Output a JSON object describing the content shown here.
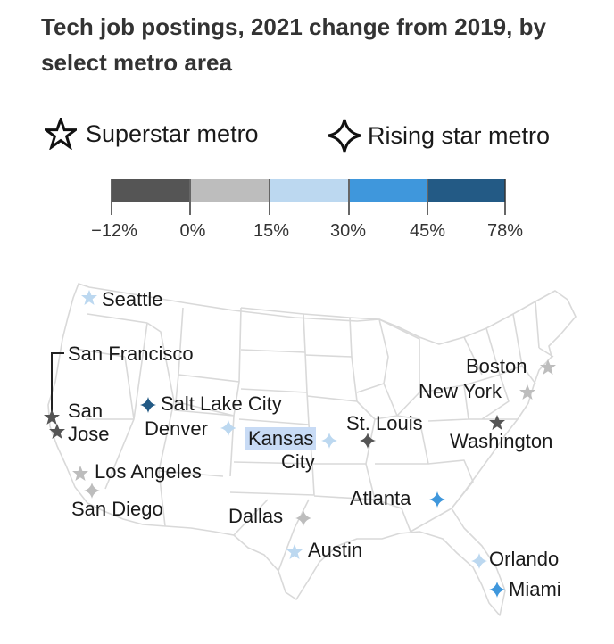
{
  "title": "Tech job postings, 2021 change from 2019, by select metro area",
  "legend": {
    "superstar": {
      "label": "Superstar metro",
      "icon": "outline-five-point-star"
    },
    "rising": {
      "label": "Rising star metro",
      "icon": "outline-four-point-star"
    }
  },
  "color_scale": {
    "ticks": [
      "−12%",
      "0%",
      "15%",
      "30%",
      "45%",
      "78%"
    ],
    "bins": [
      {
        "from": -12,
        "to": 0,
        "color": "#555555"
      },
      {
        "from": 0,
        "to": 15,
        "color": "#bdbdbd"
      },
      {
        "from": 15,
        "to": 30,
        "color": "#bcd8f0"
      },
      {
        "from": 30,
        "to": 45,
        "color": "#3f97dc"
      },
      {
        "from": 45,
        "to": 78,
        "color": "#235a85"
      }
    ]
  },
  "cities": {
    "seattle": {
      "label": "Seattle",
      "type": "superstar",
      "bin": 2
    },
    "san_francisco": {
      "label": "San Francisco",
      "type": "superstar",
      "bin": 0
    },
    "san_jose": {
      "label": "San\nJose",
      "type": "superstar",
      "bin": 0
    },
    "los_angeles": {
      "label": "Los Angeles",
      "type": "superstar",
      "bin": 1
    },
    "san_diego": {
      "label": "San Diego",
      "type": "rising",
      "bin": 1
    },
    "salt_lake_city": {
      "label": "Salt Lake City",
      "type": "rising",
      "bin": 4
    },
    "denver": {
      "label": "Denver",
      "type": "rising",
      "bin": 2
    },
    "kansas_city": {
      "label": "Kansas",
      "label2": "City",
      "type": "rising",
      "bin": 2
    },
    "st_louis": {
      "label": "St. Louis",
      "type": "rising",
      "bin": 0
    },
    "dallas": {
      "label": "Dallas",
      "type": "rising",
      "bin": 1
    },
    "austin": {
      "label": "Austin",
      "type": "superstar",
      "bin": 2
    },
    "atlanta": {
      "label": "Atlanta",
      "type": "rising",
      "bin": 3
    },
    "orlando": {
      "label": "Orlando",
      "type": "rising",
      "bin": 2
    },
    "miami": {
      "label": "Miami",
      "type": "rising",
      "bin": 3
    },
    "boston": {
      "label": "Boston",
      "type": "superstar",
      "bin": 1
    },
    "new_york": {
      "label": "New York",
      "type": "superstar",
      "bin": 1
    },
    "washington": {
      "label": "Washington",
      "type": "superstar",
      "bin": 0
    }
  }
}
